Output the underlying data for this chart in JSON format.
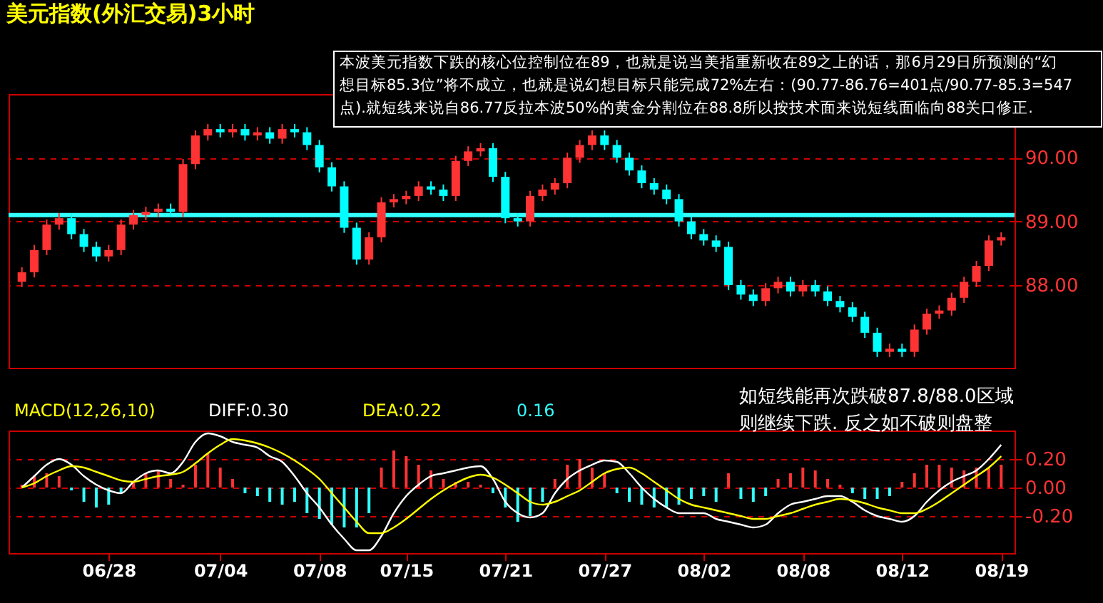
{
  "chart_data": [
    {
      "type": "candlestick",
      "title": "美元指数(外汇交易)3小时",
      "tick_labels": "y",
      "grid": "y",
      "ohlc": [
        [
          88.05,
          88.28,
          87.97,
          88.2
        ],
        [
          88.2,
          88.63,
          88.12,
          88.55
        ],
        [
          88.55,
          89.03,
          88.47,
          88.95
        ],
        [
          88.95,
          89.13,
          88.87,
          89.05
        ],
        [
          89.05,
          89.13,
          88.72,
          88.8
        ],
        [
          88.8,
          88.88,
          88.52,
          88.6
        ],
        [
          88.6,
          88.68,
          88.37,
          88.45
        ],
        [
          88.45,
          88.63,
          88.37,
          88.55
        ],
        [
          88.55,
          89.03,
          88.47,
          88.95
        ],
        [
          88.95,
          89.18,
          88.87,
          89.1
        ],
        [
          89.1,
          89.23,
          89.02,
          89.15
        ],
        [
          89.15,
          89.28,
          89.07,
          89.2
        ],
        [
          89.2,
          89.28,
          89.07,
          89.15
        ],
        [
          89.15,
          89.98,
          89.07,
          89.9
        ],
        [
          89.9,
          90.43,
          89.82,
          90.35
        ],
        [
          90.35,
          90.53,
          90.27,
          90.45
        ],
        [
          90.45,
          90.53,
          90.32,
          90.4
        ],
        [
          90.4,
          90.53,
          90.32,
          90.45
        ],
        [
          90.45,
          90.53,
          90.27,
          90.35
        ],
        [
          90.35,
          90.48,
          90.27,
          90.4
        ],
        [
          90.4,
          90.48,
          90.22,
          90.3
        ],
        [
          90.3,
          90.53,
          90.22,
          90.45
        ],
        [
          90.45,
          90.53,
          90.32,
          90.4
        ],
        [
          90.4,
          90.48,
          90.12,
          90.2
        ],
        [
          90.2,
          90.28,
          89.77,
          89.85
        ],
        [
          89.85,
          89.93,
          89.47,
          89.55
        ],
        [
          89.55,
          89.63,
          88.82,
          88.9
        ],
        [
          88.9,
          88.98,
          88.32,
          88.4
        ],
        [
          88.4,
          88.83,
          88.32,
          88.75
        ],
        [
          88.75,
          89.38,
          88.67,
          89.3
        ],
        [
          89.3,
          89.43,
          89.22,
          89.35
        ],
        [
          89.35,
          89.48,
          89.27,
          89.4
        ],
        [
          89.4,
          89.63,
          89.32,
          89.55
        ],
        [
          89.55,
          89.63,
          89.42,
          89.5
        ],
        [
          89.5,
          89.58,
          89.32,
          89.4
        ],
        [
          89.4,
          90.03,
          89.32,
          89.95
        ],
        [
          89.95,
          90.18,
          89.87,
          90.1
        ],
        [
          90.1,
          90.23,
          90.02,
          90.15
        ],
        [
          90.15,
          90.23,
          89.62,
          89.7
        ],
        [
          89.7,
          89.78,
          88.97,
          89.05
        ],
        [
          89.05,
          89.13,
          88.92,
          89.0
        ],
        [
          89.0,
          89.48,
          88.92,
          89.4
        ],
        [
          89.4,
          89.58,
          89.32,
          89.5
        ],
        [
          89.5,
          89.68,
          89.42,
          89.6
        ],
        [
          89.6,
          90.08,
          89.52,
          90.0
        ],
        [
          90.0,
          90.28,
          89.92,
          90.2
        ],
        [
          90.2,
          90.43,
          90.12,
          90.35
        ],
        [
          90.35,
          90.43,
          90.12,
          90.2
        ],
        [
          90.2,
          90.28,
          89.92,
          90.0
        ],
        [
          90.0,
          90.08,
          89.72,
          89.8
        ],
        [
          89.8,
          89.88,
          89.52,
          89.6
        ],
        [
          89.6,
          89.68,
          89.42,
          89.5
        ],
        [
          89.5,
          89.58,
          89.27,
          89.35
        ],
        [
          89.35,
          89.43,
          88.92,
          89.0
        ],
        [
          89.0,
          89.08,
          88.72,
          88.8
        ],
        [
          88.8,
          88.88,
          88.62,
          88.7
        ],
        [
          88.7,
          88.78,
          88.52,
          88.6
        ],
        [
          88.6,
          88.68,
          87.92,
          88.0
        ],
        [
          88.0,
          88.08,
          87.77,
          87.85
        ],
        [
          87.85,
          87.93,
          87.67,
          87.75
        ],
        [
          87.75,
          88.03,
          87.67,
          87.95
        ],
        [
          87.95,
          88.13,
          87.87,
          88.05
        ],
        [
          88.05,
          88.13,
          87.82,
          87.9
        ],
        [
          87.9,
          88.08,
          87.82,
          88.0
        ],
        [
          88.0,
          88.08,
          87.82,
          87.9
        ],
        [
          87.9,
          87.98,
          87.67,
          87.75
        ],
        [
          87.75,
          87.83,
          87.57,
          87.65
        ],
        [
          87.65,
          87.73,
          87.42,
          87.5
        ],
        [
          87.5,
          87.58,
          87.17,
          87.25
        ],
        [
          87.25,
          87.33,
          86.87,
          86.95
        ],
        [
          86.95,
          87.08,
          86.87,
          87.0
        ],
        [
          87.0,
          87.08,
          86.87,
          86.95
        ],
        [
          86.95,
          87.38,
          86.87,
          87.3
        ],
        [
          87.3,
          87.63,
          87.22,
          87.55
        ],
        [
          87.55,
          87.68,
          87.47,
          87.6
        ],
        [
          87.6,
          87.88,
          87.52,
          87.8
        ],
        [
          87.8,
          88.13,
          87.72,
          88.05
        ],
        [
          88.05,
          88.38,
          87.97,
          88.3
        ],
        [
          88.3,
          88.78,
          88.22,
          88.7
        ],
        [
          88.7,
          88.83,
          88.62,
          88.75
        ]
      ],
      "colors": [
        "#ff3333",
        "#ff3333",
        "#ff3333",
        "#ff3333",
        "#00ffff",
        "#00ffff",
        "#00ffff",
        "#ff3333",
        "#ff3333",
        "#ff3333",
        "#ff3333",
        "#ff3333",
        "#00ffff",
        "#ff3333",
        "#ff3333",
        "#ff3333",
        "#00ffff",
        "#ff3333",
        "#00ffff",
        "#ff3333",
        "#00ffff",
        "#ff3333",
        "#00ffff",
        "#00ffff",
        "#00ffff",
        "#00ffff",
        "#00ffff",
        "#00ffff",
        "#ff3333",
        "#ff3333",
        "#ff3333",
        "#ff3333",
        "#ff3333",
        "#00ffff",
        "#00ffff",
        "#ff3333",
        "#ff3333",
        "#ff3333",
        "#00ffff",
        "#00ffff",
        "#00ffff",
        "#ff3333",
        "#ff3333",
        "#ff3333",
        "#ff3333",
        "#ff3333",
        "#ff3333",
        "#00ffff",
        "#00ffff",
        "#00ffff",
        "#00ffff",
        "#00ffff",
        "#00ffff",
        "#00ffff",
        "#00ffff",
        "#00ffff",
        "#00ffff",
        "#00ffff",
        "#00ffff",
        "#00ffff",
        "#ff3333",
        "#ff3333",
        "#00ffff",
        "#ff3333",
        "#00ffff",
        "#00ffff",
        "#00ffff",
        "#00ffff",
        "#00ffff",
        "#00ffff",
        "#ff3333",
        "#00ffff",
        "#ff3333",
        "#ff3333",
        "#ff3333",
        "#ff3333",
        "#ff3333",
        "#ff3333",
        "#ff3333",
        "#ff3333"
      ],
      "ylim": [
        86.7,
        91.0
      ],
      "yticks": [
        {
          "value": 88,
          "label": "88.00"
        },
        {
          "value": 89,
          "label": "89.00"
        },
        {
          "value": 90,
          "label": "90.00"
        }
      ],
      "ref_lines": [
        {
          "axis": "y",
          "value": 89.1,
          "color": "#33ffff"
        }
      ],
      "annotations": [
        "本波美元指数下跌的核心位控制位在89，也就是说当美指重新收在89之上的话，那6月29日所预测的“幻",
        "想目标85.3位”将不成立，也就是说幻想目标只能完成72%左右：(90.77-86.76=401点/90.77-85.3=547",
        "点).就短线来说自86.77反拉本波50%的黄金分割位在88.8所以按技术面来说短线面临向88关口修正."
      ]
    },
    {
      "type": "bar",
      "title": "MACD(12,26,10)",
      "legend": "top left",
      "grid": "y",
      "categories": [
        null,
        null,
        null,
        null,
        null,
        null,
        null,
        "06/28",
        null,
        null,
        null,
        null,
        null,
        null,
        null,
        null,
        "07/04",
        null,
        null,
        null,
        null,
        null,
        null,
        null,
        "07/08",
        null,
        null,
        null,
        null,
        null,
        null,
        "07/15",
        null,
        null,
        null,
        null,
        null,
        null,
        null,
        "07/21",
        null,
        null,
        null,
        null,
        null,
        null,
        null,
        "07/27",
        null,
        null,
        null,
        null,
        null,
        null,
        null,
        "08/02",
        null,
        null,
        null,
        null,
        null,
        null,
        null,
        "08/08",
        null,
        null,
        null,
        null,
        null,
        null,
        null,
        "08/12",
        null,
        null,
        null,
        null,
        null,
        null,
        null,
        "08/19"
      ],
      "ylim": [
        -0.46,
        0.4
      ],
      "yticks": [
        {
          "value": -0.2,
          "label": "-0.20"
        },
        {
          "value": 0,
          "label": "0.00"
        },
        {
          "value": 0.2,
          "label": "0.20"
        }
      ],
      "series": [
        {
          "type": "line",
          "name": "DIFF:0.30",
          "color": "#ffffff",
          "values": [
            0.0,
            0.08,
            0.16,
            0.2,
            0.16,
            0.08,
            0.02,
            -0.02,
            -0.04,
            0.04,
            0.1,
            0.12,
            0.1,
            0.18,
            0.32,
            0.38,
            0.36,
            0.32,
            0.3,
            0.28,
            0.22,
            0.18,
            0.08,
            -0.04,
            -0.14,
            -0.26,
            -0.36,
            -0.44,
            -0.44,
            -0.34,
            -0.18,
            -0.06,
            0.02,
            0.08,
            0.1,
            0.12,
            0.14,
            0.15,
            0.06,
            -0.1,
            -0.18,
            -0.21,
            -0.18,
            -0.04,
            0.06,
            0.12,
            0.16,
            0.19,
            0.18,
            0.1,
            0.0,
            -0.08,
            -0.14,
            -0.18,
            -0.18,
            -0.18,
            -0.22,
            -0.24,
            -0.26,
            -0.28,
            -0.26,
            -0.18,
            -0.12,
            -0.1,
            -0.08,
            -0.06,
            -0.06,
            -0.1,
            -0.16,
            -0.2,
            -0.22,
            -0.24,
            -0.2,
            -0.1,
            -0.02,
            0.04,
            0.08,
            0.12,
            0.2,
            0.3
          ]
        },
        {
          "type": "line",
          "name": "DEA:0.22",
          "color": "#ffff00",
          "values": [
            0.0,
            0.03,
            0.08,
            0.12,
            0.15,
            0.14,
            0.11,
            0.08,
            0.05,
            0.04,
            0.06,
            0.08,
            0.09,
            0.11,
            0.17,
            0.24,
            0.3,
            0.34,
            0.33,
            0.31,
            0.28,
            0.24,
            0.19,
            0.13,
            0.06,
            -0.04,
            -0.14,
            -0.24,
            -0.32,
            -0.32,
            -0.28,
            -0.22,
            -0.15,
            -0.08,
            -0.02,
            0.03,
            0.07,
            0.09,
            0.07,
            0.02,
            -0.04,
            -0.1,
            -0.12,
            -0.1,
            -0.06,
            -0.02,
            0.04,
            0.1,
            0.13,
            0.14,
            0.1,
            0.04,
            -0.02,
            -0.08,
            -0.12,
            -0.14,
            -0.16,
            -0.18,
            -0.2,
            -0.22,
            -0.22,
            -0.2,
            -0.18,
            -0.15,
            -0.12,
            -0.1,
            -0.08,
            -0.09,
            -0.11,
            -0.14,
            -0.16,
            -0.18,
            -0.18,
            -0.15,
            -0.1,
            -0.04,
            0.02,
            0.08,
            0.14,
            0.22
          ]
        },
        {
          "type": "bar",
          "name": "0.16",
          "color": "#33ffff",
          "values": [
            0.02,
            0.08,
            0.1,
            0.08,
            -0.02,
            -0.1,
            -0.14,
            -0.12,
            -0.04,
            0.04,
            0.1,
            0.12,
            0.06,
            0.02,
            0.16,
            0.24,
            0.14,
            0.06,
            -0.04,
            -0.06,
            -0.1,
            -0.12,
            -0.1,
            -0.18,
            -0.22,
            -0.26,
            -0.28,
            -0.28,
            -0.18,
            0.14,
            0.26,
            0.22,
            0.16,
            0.12,
            0.06,
            0.04,
            0.04,
            0.02,
            -0.04,
            -0.14,
            -0.24,
            -0.2,
            -0.1,
            0.06,
            0.16,
            0.2,
            0.14,
            0.1,
            -0.04,
            -0.1,
            -0.12,
            -0.14,
            -0.14,
            -0.12,
            -0.08,
            -0.06,
            -0.1,
            0.1,
            -0.08,
            -0.1,
            -0.06,
            0.06,
            0.1,
            0.14,
            0.12,
            0.06,
            0.02,
            -0.04,
            -0.08,
            -0.08,
            -0.06,
            0.04,
            0.1,
            0.16,
            0.16,
            0.14,
            0.12,
            0.14,
            0.14,
            0.16
          ],
          "colors": [
            "#ff3333",
            "#ff3333",
            "#ff3333",
            "#ff3333",
            "#33ffff",
            "#33ffff",
            "#33ffff",
            "#33ffff",
            "#33ffff",
            "#ff3333",
            "#ff3333",
            "#ff3333",
            "#ff3333",
            "#ff3333",
            "#ff3333",
            "#ff3333",
            "#ff3333",
            "#ff3333",
            "#33ffff",
            "#33ffff",
            "#33ffff",
            "#33ffff",
            "#33ffff",
            "#33ffff",
            "#33ffff",
            "#33ffff",
            "#33ffff",
            "#33ffff",
            "#33ffff",
            "#ff3333",
            "#ff3333",
            "#ff3333",
            "#ff3333",
            "#ff3333",
            "#ff3333",
            "#ff3333",
            "#ff3333",
            "#ff3333",
            "#33ffff",
            "#33ffff",
            "#33ffff",
            "#33ffff",
            "#33ffff",
            "#ff3333",
            "#ff3333",
            "#ff3333",
            "#ff3333",
            "#ff3333",
            "#33ffff",
            "#33ffff",
            "#33ffff",
            "#33ffff",
            "#33ffff",
            "#33ffff",
            "#33ffff",
            "#33ffff",
            "#33ffff",
            "#ff3333",
            "#33ffff",
            "#33ffff",
            "#33ffff",
            "#ff3333",
            "#ff3333",
            "#ff3333",
            "#ff3333",
            "#ff3333",
            "#ff3333",
            "#33ffff",
            "#33ffff",
            "#33ffff",
            "#33ffff",
            "#ff3333",
            "#ff3333",
            "#ff3333",
            "#ff3333",
            "#ff3333",
            "#ff3333",
            "#ff3333",
            "#ff3333",
            "#ff3333"
          ]
        }
      ],
      "annotations": [
        "如短线能再次跌破87.8/88.0区域",
        "则继续下跌. 反之如不破则盘整"
      ]
    }
  ]
}
